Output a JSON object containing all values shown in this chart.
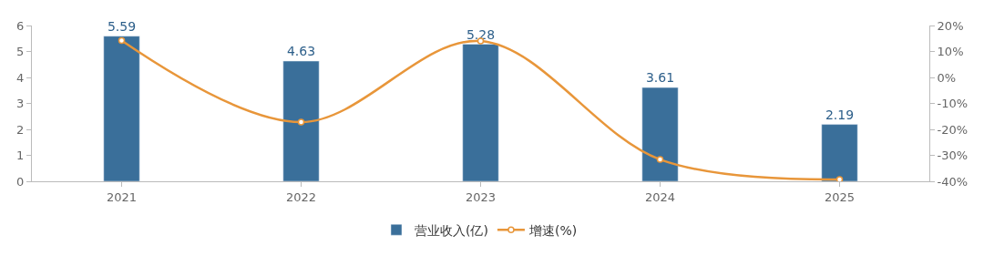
{
  "chart_data": {
    "type": "bar",
    "categories": [
      "2021",
      "2022",
      "2023",
      "2024",
      "2025"
    ],
    "series": [
      {
        "name": "营业收入(亿)",
        "color": "#3a6f9a",
        "values": [
          5.59,
          4.63,
          5.28,
          3.61,
          2.19
        ],
        "value_labels": [
          "5.59",
          "4.63",
          "5.28",
          "3.61",
          "2.19"
        ]
      },
      {
        "name": "增速(%)",
        "type": "line",
        "axis": "y2",
        "color": "#e8963a",
        "marker": "circle",
        "values": [
          14.2,
          -17.2,
          14.0,
          -31.6,
          -39.3
        ]
      }
    ],
    "ylim": [
      0,
      6
    ],
    "yticks": [
      0,
      1,
      2,
      3,
      4,
      5,
      6
    ],
    "y2lim": [
      -40,
      20
    ],
    "y2ticks": [
      {
        "value": -40,
        "label": "-40%"
      },
      {
        "value": -30,
        "label": "-30%"
      },
      {
        "value": -20,
        "label": "-20%"
      },
      {
        "value": -10,
        "label": "-10%"
      },
      {
        "value": 0,
        "label": "0%"
      },
      {
        "value": 10,
        "label": "10%"
      },
      {
        "value": 20,
        "label": "20%"
      }
    ],
    "legend": "bottom"
  }
}
